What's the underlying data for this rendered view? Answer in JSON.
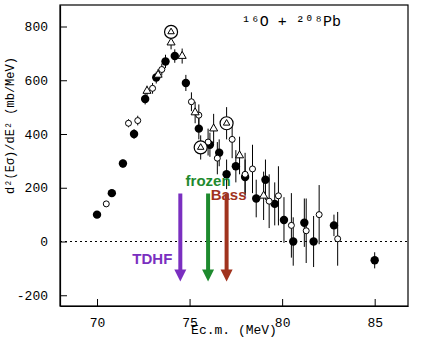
{
  "chart_data": {
    "type": "scatter",
    "title": "¹⁶O + ²⁰⁸Pb",
    "x_label": "Ec.m. (MeV)",
    "y_label": "d²(Eσ)/dE²  (mb/MeV)",
    "xlim": [
      68,
      86.8
    ],
    "ylim": [
      -240,
      880
    ],
    "xticks": [
      70,
      75,
      80,
      85
    ],
    "yticks": [
      -200,
      0,
      200,
      400,
      600,
      800
    ],
    "grid": false,
    "zero_line": {
      "y": 0,
      "line_style": "dotted"
    },
    "series": [
      {
        "marker": "filled-circle",
        "color": "#000000",
        "x": [
          70.0,
          70.8,
          71.4,
          72.0,
          72.6,
          73.2,
          73.7,
          74.2,
          74.8,
          75.5,
          76.1,
          76.6,
          77.0,
          77.5,
          78.0,
          78.6,
          79.1,
          79.6,
          80.1,
          80.6,
          81.2,
          81.7,
          82.8,
          85.0
        ],
        "values": [
          100,
          180,
          290,
          400,
          530,
          610,
          670,
          690,
          590,
          420,
          360,
          330,
          250,
          280,
          240,
          160,
          230,
          140,
          80,
          0,
          70,
          0,
          60,
          -70
        ],
        "errors": [
          10,
          12,
          15,
          18,
          20,
          22,
          25,
          25,
          30,
          40,
          45,
          50,
          55,
          60,
          65,
          70,
          75,
          80,
          85,
          90,
          90,
          95,
          40,
          30
        ]
      },
      {
        "marker": "open-circle",
        "color": "#000000",
        "x": [
          70.5,
          71.7,
          72.2,
          73.0,
          73.5,
          75.1,
          75.5,
          76.0,
          76.5,
          77.3,
          78.0,
          78.4,
          79.3,
          79.8,
          80.5,
          81.3,
          82.0,
          83.0
        ],
        "values": [
          140,
          440,
          450,
          570,
          640,
          520,
          470,
          370,
          310,
          380,
          250,
          270,
          150,
          170,
          60,
          40,
          100,
          10
        ],
        "errors": [
          10,
          15,
          18,
          20,
          22,
          35,
          40,
          50,
          60,
          70,
          80,
          90,
          100,
          110,
          120,
          120,
          110,
          100
        ]
      },
      {
        "marker": "triangle",
        "color": "#000000",
        "x": [
          72.7,
          73.3,
          74.0,
          74.6,
          75.3,
          76.3,
          77.7,
          79.0
        ],
        "values": [
          560,
          620,
          740,
          690,
          480,
          420,
          320,
          170
        ],
        "errors": [
          20,
          22,
          25,
          28,
          40,
          55,
          70,
          90
        ]
      },
      {
        "marker": "circled",
        "color": "#000000",
        "x": [
          74.0,
          75.6,
          77.0
        ],
        "values": [
          780,
          350,
          440
        ],
        "errors": [
          25,
          45,
          60
        ]
      }
    ],
    "annotations": [
      {
        "text": "TDHF",
        "x": 74.5,
        "color": "#7a2fc0"
      },
      {
        "text": "frozen",
        "x": 76.0,
        "color": "#1e8a2e"
      },
      {
        "text": "Bass",
        "x": 77.0,
        "color": "#a0331e"
      }
    ]
  }
}
